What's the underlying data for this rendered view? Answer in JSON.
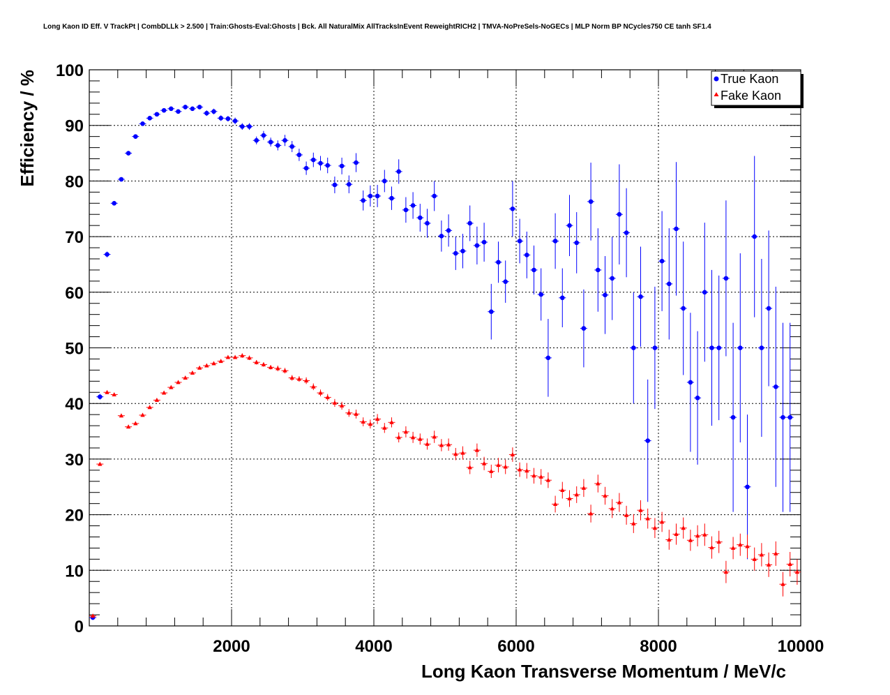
{
  "chart_data": {
    "type": "scatter",
    "title": "Long Kaon ID Eff. V TrackPt | CombDLLk > 2.500 | Train:Ghosts-Eval:Ghosts | Bck. All NaturalMix AllTracksInEvent ReweightRICH2 | TMVA-NoPreSels-NoGECs | MLP Norm BP NCycles750 CE tanh SF1.4",
    "xlabel": "Long Kaon Transverse Momentum / MeV/c",
    "ylabel": "Efficiency / %",
    "xlim": [
      0,
      10000
    ],
    "ylim": [
      0,
      100
    ],
    "xticks": [
      2000,
      4000,
      6000,
      8000,
      10000
    ],
    "xtick_labels": [
      "2000",
      "4000",
      "6000",
      "8000",
      "10000"
    ],
    "yticks": [
      0,
      10,
      20,
      30,
      40,
      50,
      60,
      70,
      80,
      90,
      100
    ],
    "ytick_labels": [
      "0",
      "10",
      "20",
      "30",
      "40",
      "50",
      "60",
      "70",
      "80",
      "90",
      "100"
    ],
    "grid": true,
    "legend_position": "top-right",
    "series": [
      {
        "name": "True Kaon",
        "color": "#0000ff",
        "marker": "circle",
        "points": [
          [
            50,
            1.5,
            0.4
          ],
          [
            150,
            41.2,
            0.5
          ],
          [
            250,
            66.8,
            0.5
          ],
          [
            350,
            76,
            0.4
          ],
          [
            450,
            80.3,
            0.4
          ],
          [
            550,
            85,
            0.4
          ],
          [
            650,
            88,
            0.4
          ],
          [
            750,
            90.3,
            0.4
          ],
          [
            850,
            91.3,
            0.4
          ],
          [
            950,
            92,
            0.4
          ],
          [
            1050,
            92.7,
            0.4
          ],
          [
            1150,
            93,
            0.4
          ],
          [
            1250,
            92.5,
            0.4
          ],
          [
            1350,
            93.3,
            0.4
          ],
          [
            1450,
            93,
            0.4
          ],
          [
            1550,
            93.3,
            0.4
          ],
          [
            1650,
            92.2,
            0.5
          ],
          [
            1750,
            92.5,
            0.5
          ],
          [
            1850,
            91.3,
            0.5
          ],
          [
            1950,
            91.2,
            0.5
          ],
          [
            2050,
            90.8,
            0.6
          ],
          [
            2150,
            89.8,
            0.6
          ],
          [
            2250,
            89.8,
            0.6
          ],
          [
            2350,
            87.3,
            0.7
          ],
          [
            2450,
            88.2,
            0.8
          ],
          [
            2550,
            87,
            0.8
          ],
          [
            2650,
            86.4,
            0.9
          ],
          [
            2750,
            87.3,
            1
          ],
          [
            2850,
            86.2,
            1
          ],
          [
            2950,
            84.7,
            1.1
          ],
          [
            3050,
            82.3,
            1.2
          ],
          [
            3150,
            83.8,
            1.3
          ],
          [
            3250,
            83.2,
            1.3
          ],
          [
            3350,
            82.8,
            1.4
          ],
          [
            3450,
            79.3,
            1.5
          ],
          [
            3550,
            82.7,
            1.5
          ],
          [
            3650,
            79.4,
            1.6
          ],
          [
            3750,
            83.3,
            1.7
          ],
          [
            3850,
            76.5,
            1.8
          ],
          [
            3950,
            77.3,
            1.9
          ],
          [
            4050,
            77.3,
            2
          ],
          [
            4150,
            80,
            2
          ],
          [
            4250,
            76.9,
            2.1
          ],
          [
            4350,
            81.7,
            2.2
          ],
          [
            4450,
            74.8,
            2.3
          ],
          [
            4550,
            75.6,
            2.4
          ],
          [
            4650,
            73.4,
            2.5
          ],
          [
            4750,
            72.4,
            2.6
          ],
          [
            4850,
            77.3,
            2.7
          ],
          [
            4950,
            70.1,
            2.8
          ],
          [
            5050,
            71.1,
            2.9
          ],
          [
            5150,
            67,
            3
          ],
          [
            5250,
            67.4,
            3.1
          ],
          [
            5350,
            72.4,
            3.2
          ],
          [
            5450,
            68.4,
            3.4
          ],
          [
            5550,
            69,
            3.5
          ],
          [
            5650,
            56.5,
            5
          ],
          [
            5750,
            65.4,
            3.7
          ],
          [
            5850,
            61.9,
            3.8
          ],
          [
            5950,
            75,
            5
          ],
          [
            6050,
            69.2,
            4
          ],
          [
            6150,
            66.7,
            4.2
          ],
          [
            6250,
            64,
            4.4
          ],
          [
            6350,
            59.6,
            4.7
          ],
          [
            6450,
            48.2,
            7
          ],
          [
            6550,
            69.2,
            5
          ],
          [
            6650,
            59,
            5.3
          ],
          [
            6750,
            72,
            5.5
          ],
          [
            6850,
            68.9,
            5.5
          ],
          [
            6950,
            53.5,
            7
          ],
          [
            7050,
            76.3,
            7
          ],
          [
            7150,
            64,
            7.5
          ],
          [
            7250,
            59.5,
            7
          ],
          [
            7350,
            62.5,
            7.5
          ],
          [
            7450,
            74,
            9
          ],
          [
            7550,
            70.7,
            8
          ],
          [
            7650,
            50,
            10
          ],
          [
            7750,
            59.2,
            9
          ],
          [
            7850,
            33.3,
            11
          ],
          [
            7950,
            50,
            11
          ],
          [
            8050,
            65.6,
            9
          ],
          [
            8150,
            61.5,
            10
          ],
          [
            8250,
            71.4,
            12
          ],
          [
            8350,
            57.1,
            12
          ],
          [
            8450,
            43.8,
            12.5
          ],
          [
            8550,
            41,
            12
          ],
          [
            8650,
            60,
            12.5
          ],
          [
            8750,
            50,
            14
          ],
          [
            8850,
            50,
            13
          ],
          [
            8950,
            62.5,
            14
          ],
          [
            9050,
            37.5,
            17
          ],
          [
            9150,
            50,
            17
          ],
          [
            9250,
            25,
            13
          ],
          [
            9350,
            70,
            14.5
          ],
          [
            9450,
            50,
            16
          ],
          [
            9550,
            57.1,
            14
          ],
          [
            9650,
            43,
            18
          ],
          [
            9750,
            37.5,
            17
          ],
          [
            9850,
            37.5,
            17
          ]
        ]
      },
      {
        "name": "Fake Kaon",
        "color": "#ff0000",
        "marker": "triangle",
        "points": [
          [
            50,
            1.8,
            0.3
          ],
          [
            150,
            29.1,
            0.3
          ],
          [
            250,
            42,
            0.3
          ],
          [
            350,
            41.6,
            0.3
          ],
          [
            450,
            37.8,
            0.3
          ],
          [
            550,
            35.8,
            0.3
          ],
          [
            650,
            36.4,
            0.3
          ],
          [
            750,
            37.9,
            0.3
          ],
          [
            850,
            39.3,
            0.3
          ],
          [
            950,
            40.6,
            0.3
          ],
          [
            1050,
            41.9,
            0.3
          ],
          [
            1150,
            42.9,
            0.3
          ],
          [
            1250,
            43.8,
            0.3
          ],
          [
            1350,
            44.6,
            0.3
          ],
          [
            1450,
            45.5,
            0.3
          ],
          [
            1550,
            46.4,
            0.3
          ],
          [
            1650,
            46.8,
            0.3
          ],
          [
            1750,
            47.2,
            0.3
          ],
          [
            1850,
            47.6,
            0.3
          ],
          [
            1950,
            48.3,
            0.3
          ],
          [
            2050,
            48.3,
            0.3
          ],
          [
            2150,
            48.6,
            0.4
          ],
          [
            2250,
            48.2,
            0.4
          ],
          [
            2350,
            47.4,
            0.4
          ],
          [
            2450,
            47,
            0.4
          ],
          [
            2550,
            46.5,
            0.4
          ],
          [
            2650,
            46.3,
            0.5
          ],
          [
            2750,
            45.9,
            0.5
          ],
          [
            2850,
            44.6,
            0.5
          ],
          [
            2950,
            44.4,
            0.5
          ],
          [
            3050,
            44.1,
            0.6
          ],
          [
            3150,
            43,
            0.6
          ],
          [
            3250,
            41.9,
            0.6
          ],
          [
            3350,
            41.1,
            0.6
          ],
          [
            3450,
            40.1,
            0.7
          ],
          [
            3550,
            39.6,
            0.7
          ],
          [
            3650,
            38.3,
            0.7
          ],
          [
            3750,
            38.1,
            0.8
          ],
          [
            3850,
            36.7,
            0.8
          ],
          [
            3950,
            36.3,
            0.8
          ],
          [
            4050,
            37.2,
            0.9
          ],
          [
            4150,
            35.6,
            0.9
          ],
          [
            4250,
            36.6,
            0.9
          ],
          [
            4350,
            33.9,
            0.9
          ],
          [
            4450,
            34.9,
            1
          ],
          [
            4550,
            33.9,
            1
          ],
          [
            4650,
            33.6,
            1
          ],
          [
            4750,
            32.7,
            1
          ],
          [
            4850,
            34,
            1.1
          ],
          [
            4950,
            32.5,
            1.1
          ],
          [
            5050,
            32.6,
            1.1
          ],
          [
            5150,
            30.9,
            1.1
          ],
          [
            5250,
            31.1,
            1.2
          ],
          [
            5350,
            28.5,
            1.2
          ],
          [
            5450,
            31.6,
            1.2
          ],
          [
            5550,
            29.2,
            1.2
          ],
          [
            5650,
            27.8,
            1.2
          ],
          [
            5750,
            28.9,
            1.3
          ],
          [
            5850,
            28.6,
            1.3
          ],
          [
            5950,
            30.8,
            1.3
          ],
          [
            6050,
            28.1,
            1.3
          ],
          [
            6150,
            27.9,
            1.4
          ],
          [
            6250,
            27,
            1.4
          ],
          [
            6350,
            26.8,
            1.4
          ],
          [
            6450,
            26.2,
            1.4
          ],
          [
            6550,
            21.9,
            1.5
          ],
          [
            6650,
            24.4,
            1.5
          ],
          [
            6750,
            22.9,
            1.5
          ],
          [
            6850,
            23.6,
            1.5
          ],
          [
            6950,
            24.8,
            1.6
          ],
          [
            7050,
            20.2,
            1.6
          ],
          [
            7150,
            25.6,
            1.6
          ],
          [
            7250,
            23.4,
            1.6
          ],
          [
            7350,
            21.1,
            1.7
          ],
          [
            7450,
            22.2,
            1.7
          ],
          [
            7550,
            19.9,
            1.7
          ],
          [
            7650,
            18.4,
            1.7
          ],
          [
            7750,
            20.8,
            1.8
          ],
          [
            7850,
            19.3,
            1.8
          ],
          [
            7950,
            17.6,
            1.8
          ],
          [
            8050,
            18.7,
            1.8
          ],
          [
            8150,
            15.5,
            1.8
          ],
          [
            8250,
            16.5,
            1.9
          ],
          [
            8350,
            17.6,
            1.9
          ],
          [
            8450,
            15.4,
            1.9
          ],
          [
            8550,
            16.2,
            1.9
          ],
          [
            8650,
            16.4,
            2
          ],
          [
            8750,
            14.1,
            2
          ],
          [
            8850,
            15.1,
            2
          ],
          [
            8950,
            9.7,
            2
          ],
          [
            9050,
            14,
            2
          ],
          [
            9150,
            14.6,
            2
          ],
          [
            9250,
            14.3,
            2.1
          ],
          [
            9350,
            12,
            2.1
          ],
          [
            9450,
            12.8,
            2.1
          ],
          [
            9550,
            11,
            2.2
          ],
          [
            9650,
            13,
            2.2
          ],
          [
            9750,
            7.5,
            2.2
          ],
          [
            9850,
            11.1,
            2.2
          ],
          [
            9950,
            9.7,
            2.3
          ]
        ]
      }
    ]
  }
}
